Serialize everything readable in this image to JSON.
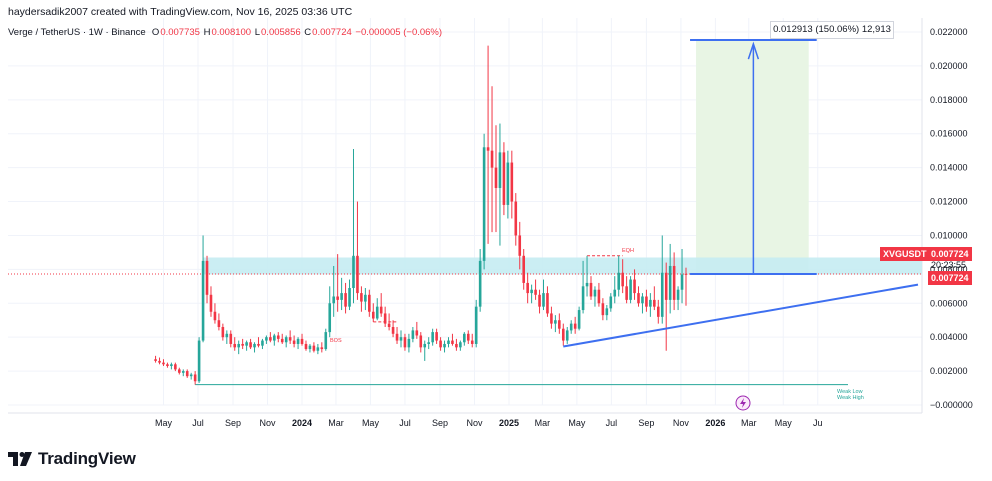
{
  "header": {
    "created": "haydersadik2007 created with TradingView.com, Nov 16, 2025 03:36 UTC",
    "symbol": "Verge / TetherUS · 1W · Binance",
    "o_label": "O",
    "o_val": "0.007735",
    "h_label": "H",
    "h_val": "0.008100",
    "l_label": "L",
    "l_val": "0.005856",
    "c_label": "C",
    "c_val": "0.007724",
    "change": "−0.000005 (−0.06%)"
  },
  "branding": {
    "logo_text": "TradingView"
  },
  "price_tags": {
    "symbol_tag": "XVGUSDT",
    "last_price": "0.007724",
    "countdown": "20:23:55",
    "last_price_2": "0.007724"
  },
  "measure": {
    "label": "0.012913 (150.06%) 12,913"
  },
  "annotations": {
    "eqh": "EQH",
    "bos": "BOS",
    "weak_low": "Weak Low",
    "weak_high": "Weak High"
  },
  "colors": {
    "up": "#26a69a",
    "down": "#f23645",
    "zone": "#c5ecf2",
    "trend": "#3d6ff0",
    "measure_fill": "#e8f5e4"
  },
  "chart_data": {
    "type": "candlestick",
    "title": "Verge / TetherUS · 1W · Binance",
    "y_ticks": [
      "0.022000",
      "0.020000",
      "0.018000",
      "0.016000",
      "0.014000",
      "0.012000",
      "0.010000",
      "0.008000",
      "0.006000",
      "0.004000",
      "0.002000",
      "−0.000000"
    ],
    "ylim": [
      -0.0008,
      0.0232
    ],
    "x_ticks": [
      "May",
      "Jul",
      "Sep",
      "Nov",
      "2024",
      "Mar",
      "May",
      "Jul",
      "Sep",
      "Nov",
      "2025",
      "Mar",
      "May",
      "Jul",
      "Sep",
      "Nov",
      "2026",
      "Mar",
      "May",
      "Ju"
    ],
    "grid": true,
    "legend": "none",
    "candles": [
      {
        "t": "2023-04-17",
        "o": 0.0027,
        "h": 0.0029,
        "l": 0.0025,
        "c": 0.0026
      },
      {
        "t": "2023-04-24",
        "o": 0.0026,
        "h": 0.0028,
        "l": 0.0024,
        "c": 0.0025
      },
      {
        "t": "2023-05-01",
        "o": 0.0025,
        "h": 0.0027,
        "l": 0.0023,
        "c": 0.0024
      },
      {
        "t": "2023-05-08",
        "o": 0.0024,
        "h": 0.0025,
        "l": 0.0022,
        "c": 0.0023
      },
      {
        "t": "2023-05-15",
        "o": 0.0023,
        "h": 0.0025,
        "l": 0.0021,
        "c": 0.0024
      },
      {
        "t": "2023-05-22",
        "o": 0.0024,
        "h": 0.0025,
        "l": 0.002,
        "c": 0.0021
      },
      {
        "t": "2023-05-29",
        "o": 0.0021,
        "h": 0.0022,
        "l": 0.0018,
        "c": 0.0019
      },
      {
        "t": "2023-06-05",
        "o": 0.0019,
        "h": 0.0021,
        "l": 0.0017,
        "c": 0.002
      },
      {
        "t": "2023-06-12",
        "o": 0.002,
        "h": 0.0021,
        "l": 0.0016,
        "c": 0.0017
      },
      {
        "t": "2023-06-19",
        "o": 0.0017,
        "h": 0.0019,
        "l": 0.0015,
        "c": 0.0018
      },
      {
        "t": "2023-06-26",
        "o": 0.0018,
        "h": 0.002,
        "l": 0.0012,
        "c": 0.0014
      },
      {
        "t": "2023-07-03",
        "o": 0.0014,
        "h": 0.004,
        "l": 0.0013,
        "c": 0.0038
      },
      {
        "t": "2023-07-10",
        "o": 0.0038,
        "h": 0.01,
        "l": 0.0037,
        "c": 0.0085
      },
      {
        "t": "2023-07-17",
        "o": 0.0085,
        "h": 0.0088,
        "l": 0.006,
        "c": 0.0065
      },
      {
        "t": "2023-07-24",
        "o": 0.0065,
        "h": 0.007,
        "l": 0.0052,
        "c": 0.0055
      },
      {
        "t": "2023-07-31",
        "o": 0.0055,
        "h": 0.006,
        "l": 0.0048,
        "c": 0.005
      },
      {
        "t": "2023-08-07",
        "o": 0.005,
        "h": 0.0054,
        "l": 0.0044,
        "c": 0.0046
      },
      {
        "t": "2023-08-14",
        "o": 0.0046,
        "h": 0.0048,
        "l": 0.0038,
        "c": 0.004
      },
      {
        "t": "2023-08-21",
        "o": 0.004,
        "h": 0.0044,
        "l": 0.0036,
        "c": 0.0042
      },
      {
        "t": "2023-08-28",
        "o": 0.0042,
        "h": 0.0044,
        "l": 0.0034,
        "c": 0.0036
      },
      {
        "t": "2023-09-04",
        "o": 0.0036,
        "h": 0.004,
        "l": 0.0032,
        "c": 0.0034
      },
      {
        "t": "2023-09-11",
        "o": 0.0034,
        "h": 0.0038,
        "l": 0.003,
        "c": 0.0036
      },
      {
        "t": "2023-09-18",
        "o": 0.0036,
        "h": 0.0039,
        "l": 0.0033,
        "c": 0.0035
      },
      {
        "t": "2023-09-25",
        "o": 0.0035,
        "h": 0.0038,
        "l": 0.0032,
        "c": 0.0037
      },
      {
        "t": "2023-10-02",
        "o": 0.0037,
        "h": 0.0039,
        "l": 0.0033,
        "c": 0.0034
      },
      {
        "t": "2023-10-09",
        "o": 0.0034,
        "h": 0.0037,
        "l": 0.0031,
        "c": 0.0036
      },
      {
        "t": "2023-10-16",
        "o": 0.0036,
        "h": 0.004,
        "l": 0.0034,
        "c": 0.0035
      },
      {
        "t": "2023-10-23",
        "o": 0.0035,
        "h": 0.0039,
        "l": 0.0033,
        "c": 0.0038
      },
      {
        "t": "2023-10-30",
        "o": 0.0038,
        "h": 0.0041,
        "l": 0.0036,
        "c": 0.004
      },
      {
        "t": "2023-11-06",
        "o": 0.004,
        "h": 0.0043,
        "l": 0.0037,
        "c": 0.0038
      },
      {
        "t": "2023-11-13",
        "o": 0.0038,
        "h": 0.0042,
        "l": 0.0035,
        "c": 0.0041
      },
      {
        "t": "2023-11-20",
        "o": 0.0041,
        "h": 0.0043,
        "l": 0.0037,
        "c": 0.0039
      },
      {
        "t": "2023-11-27",
        "o": 0.0039,
        "h": 0.0042,
        "l": 0.0036,
        "c": 0.0037
      },
      {
        "t": "2023-12-04",
        "o": 0.0037,
        "h": 0.0041,
        "l": 0.0034,
        "c": 0.004
      },
      {
        "t": "2023-12-11",
        "o": 0.004,
        "h": 0.0044,
        "l": 0.0036,
        "c": 0.0038
      },
      {
        "t": "2023-12-18",
        "o": 0.0038,
        "h": 0.0041,
        "l": 0.0034,
        "c": 0.0036
      },
      {
        "t": "2023-12-25",
        "o": 0.0036,
        "h": 0.004,
        "l": 0.0033,
        "c": 0.0039
      },
      {
        "t": "2024-01-01",
        "o": 0.0039,
        "h": 0.0042,
        "l": 0.0035,
        "c": 0.0036
      },
      {
        "t": "2024-01-08",
        "o": 0.0036,
        "h": 0.0038,
        "l": 0.0032,
        "c": 0.0033
      },
      {
        "t": "2024-01-15",
        "o": 0.0033,
        "h": 0.0036,
        "l": 0.0031,
        "c": 0.0035
      },
      {
        "t": "2024-01-22",
        "o": 0.0035,
        "h": 0.0037,
        "l": 0.0031,
        "c": 0.0032
      },
      {
        "t": "2024-01-29",
        "o": 0.0032,
        "h": 0.0036,
        "l": 0.003,
        "c": 0.0034
      },
      {
        "t": "2024-02-05",
        "o": 0.0034,
        "h": 0.0037,
        "l": 0.0031,
        "c": 0.0033
      },
      {
        "t": "2024-02-12",
        "o": 0.0033,
        "h": 0.0045,
        "l": 0.0032,
        "c": 0.0043
      },
      {
        "t": "2024-02-19",
        "o": 0.0043,
        "h": 0.007,
        "l": 0.004,
        "c": 0.006
      },
      {
        "t": "2024-02-26",
        "o": 0.006,
        "h": 0.0082,
        "l": 0.0052,
        "c": 0.0064
      },
      {
        "t": "2024-03-04",
        "o": 0.0064,
        "h": 0.0089,
        "l": 0.0055,
        "c": 0.0062
      },
      {
        "t": "2024-03-11",
        "o": 0.0062,
        "h": 0.0075,
        "l": 0.0056,
        "c": 0.0066
      },
      {
        "t": "2024-03-18",
        "o": 0.0066,
        "h": 0.0072,
        "l": 0.0054,
        "c": 0.0058
      },
      {
        "t": "2024-03-25",
        "o": 0.0058,
        "h": 0.0074,
        "l": 0.0056,
        "c": 0.0069
      },
      {
        "t": "2024-04-01",
        "o": 0.0069,
        "h": 0.0151,
        "l": 0.006,
        "c": 0.0088
      },
      {
        "t": "2024-04-08",
        "o": 0.0088,
        "h": 0.012,
        "l": 0.0062,
        "c": 0.0066
      },
      {
        "t": "2024-04-15",
        "o": 0.0066,
        "h": 0.007,
        "l": 0.0055,
        "c": 0.0061
      },
      {
        "t": "2024-04-22",
        "o": 0.0061,
        "h": 0.0069,
        "l": 0.0056,
        "c": 0.0065
      },
      {
        "t": "2024-04-29",
        "o": 0.0065,
        "h": 0.0068,
        "l": 0.0052,
        "c": 0.0055
      },
      {
        "t": "2024-05-06",
        "o": 0.0055,
        "h": 0.006,
        "l": 0.0049,
        "c": 0.0051
      },
      {
        "t": "2024-05-13",
        "o": 0.0051,
        "h": 0.0063,
        "l": 0.005,
        "c": 0.0058
      },
      {
        "t": "2024-05-20",
        "o": 0.0058,
        "h": 0.0066,
        "l": 0.0052,
        "c": 0.0054
      },
      {
        "t": "2024-05-27",
        "o": 0.0054,
        "h": 0.0058,
        "l": 0.0046,
        "c": 0.0048
      },
      {
        "t": "2024-06-03",
        "o": 0.0048,
        "h": 0.0054,
        "l": 0.0044,
        "c": 0.0046
      },
      {
        "t": "2024-06-10",
        "o": 0.0046,
        "h": 0.005,
        "l": 0.004,
        "c": 0.0042
      },
      {
        "t": "2024-06-17",
        "o": 0.0042,
        "h": 0.0046,
        "l": 0.0036,
        "c": 0.0038
      },
      {
        "t": "2024-06-24",
        "o": 0.0038,
        "h": 0.0044,
        "l": 0.0034,
        "c": 0.004
      },
      {
        "t": "2024-07-01",
        "o": 0.004,
        "h": 0.0042,
        "l": 0.0032,
        "c": 0.0034
      },
      {
        "t": "2024-07-08",
        "o": 0.0034,
        "h": 0.0042,
        "l": 0.0031,
        "c": 0.0039
      },
      {
        "t": "2024-07-15",
        "o": 0.0039,
        "h": 0.0046,
        "l": 0.0037,
        "c": 0.0044
      },
      {
        "t": "2024-07-22",
        "o": 0.0044,
        "h": 0.0049,
        "l": 0.0039,
        "c": 0.0041
      },
      {
        "t": "2024-07-29",
        "o": 0.0041,
        "h": 0.0043,
        "l": 0.0031,
        "c": 0.0034
      },
      {
        "t": "2024-08-05",
        "o": 0.0034,
        "h": 0.0038,
        "l": 0.0026,
        "c": 0.0036
      },
      {
        "t": "2024-08-12",
        "o": 0.0036,
        "h": 0.004,
        "l": 0.0033,
        "c": 0.0037
      },
      {
        "t": "2024-08-19",
        "o": 0.0037,
        "h": 0.0045,
        "l": 0.0035,
        "c": 0.0043
      },
      {
        "t": "2024-08-26",
        "o": 0.0043,
        "h": 0.0045,
        "l": 0.0036,
        "c": 0.0038
      },
      {
        "t": "2024-09-02",
        "o": 0.0038,
        "h": 0.004,
        "l": 0.0032,
        "c": 0.0034
      },
      {
        "t": "2024-09-09",
        "o": 0.0034,
        "h": 0.0038,
        "l": 0.0031,
        "c": 0.0036
      },
      {
        "t": "2024-09-16",
        "o": 0.0036,
        "h": 0.004,
        "l": 0.0034,
        "c": 0.0038
      },
      {
        "t": "2024-09-23",
        "o": 0.0038,
        "h": 0.0042,
        "l": 0.0035,
        "c": 0.0036
      },
      {
        "t": "2024-09-30",
        "o": 0.0036,
        "h": 0.0039,
        "l": 0.0032,
        "c": 0.0034
      },
      {
        "t": "2024-10-07",
        "o": 0.0034,
        "h": 0.0038,
        "l": 0.0032,
        "c": 0.0037
      },
      {
        "t": "2024-10-14",
        "o": 0.0037,
        "h": 0.0043,
        "l": 0.0035,
        "c": 0.0042
      },
      {
        "t": "2024-10-21",
        "o": 0.0042,
        "h": 0.0044,
        "l": 0.0036,
        "c": 0.0038
      },
      {
        "t": "2024-10-28",
        "o": 0.0038,
        "h": 0.0042,
        "l": 0.0034,
        "c": 0.0036
      },
      {
        "t": "2024-11-04",
        "o": 0.0036,
        "h": 0.0062,
        "l": 0.0034,
        "c": 0.0058
      },
      {
        "t": "2024-11-11",
        "o": 0.0058,
        "h": 0.0092,
        "l": 0.0055,
        "c": 0.0085
      },
      {
        "t": "2024-11-18",
        "o": 0.0085,
        "h": 0.016,
        "l": 0.008,
        "c": 0.0152
      },
      {
        "t": "2024-11-25",
        "o": 0.0152,
        "h": 0.0212,
        "l": 0.0095,
        "c": 0.015
      },
      {
        "t": "2024-12-02",
        "o": 0.015,
        "h": 0.0188,
        "l": 0.0102,
        "c": 0.014
      },
      {
        "t": "2024-12-09",
        "o": 0.014,
        "h": 0.0165,
        "l": 0.0102,
        "c": 0.0128
      },
      {
        "t": "2024-12-16",
        "o": 0.0128,
        "h": 0.0166,
        "l": 0.0094,
        "c": 0.0149
      },
      {
        "t": "2024-12-23",
        "o": 0.0149,
        "h": 0.0155,
        "l": 0.0112,
        "c": 0.0118
      },
      {
        "t": "2024-12-30",
        "o": 0.0118,
        "h": 0.015,
        "l": 0.011,
        "c": 0.0143
      },
      {
        "t": "2025-01-06",
        "o": 0.0143,
        "h": 0.015,
        "l": 0.011,
        "c": 0.012
      },
      {
        "t": "2025-01-13",
        "o": 0.012,
        "h": 0.0125,
        "l": 0.0094,
        "c": 0.01
      },
      {
        "t": "2025-01-20",
        "o": 0.01,
        "h": 0.0108,
        "l": 0.008,
        "c": 0.0088
      },
      {
        "t": "2025-01-27",
        "o": 0.0088,
        "h": 0.0092,
        "l": 0.0068,
        "c": 0.0072
      },
      {
        "t": "2025-02-03",
        "o": 0.0072,
        "h": 0.0078,
        "l": 0.006,
        "c": 0.0066
      },
      {
        "t": "2025-02-10",
        "o": 0.0066,
        "h": 0.0071,
        "l": 0.006,
        "c": 0.0068
      },
      {
        "t": "2025-02-17",
        "o": 0.0068,
        "h": 0.0074,
        "l": 0.0062,
        "c": 0.0065
      },
      {
        "t": "2025-02-24",
        "o": 0.0065,
        "h": 0.0068,
        "l": 0.0054,
        "c": 0.0058
      },
      {
        "t": "2025-03-03",
        "o": 0.0058,
        "h": 0.0074,
        "l": 0.0056,
        "c": 0.0066
      },
      {
        "t": "2025-03-10",
        "o": 0.0066,
        "h": 0.007,
        "l": 0.0052,
        "c": 0.0054
      },
      {
        "t": "2025-03-17",
        "o": 0.0054,
        "h": 0.0058,
        "l": 0.0045,
        "c": 0.0048
      },
      {
        "t": "2025-03-24",
        "o": 0.0048,
        "h": 0.0053,
        "l": 0.0043,
        "c": 0.005
      },
      {
        "t": "2025-03-31",
        "o": 0.005,
        "h": 0.0054,
        "l": 0.0042,
        "c": 0.0045
      },
      {
        "t": "2025-04-07",
        "o": 0.0045,
        "h": 0.0048,
        "l": 0.0035,
        "c": 0.0038
      },
      {
        "t": "2025-04-14",
        "o": 0.0038,
        "h": 0.0046,
        "l": 0.0036,
        "c": 0.0044
      },
      {
        "t": "2025-04-21",
        "o": 0.0044,
        "h": 0.005,
        "l": 0.0042,
        "c": 0.0048
      },
      {
        "t": "2025-04-28",
        "o": 0.0048,
        "h": 0.0052,
        "l": 0.0042,
        "c": 0.0045
      },
      {
        "t": "2025-05-05",
        "o": 0.0045,
        "h": 0.0058,
        "l": 0.0044,
        "c": 0.0056
      },
      {
        "t": "2025-05-12",
        "o": 0.0056,
        "h": 0.0085,
        "l": 0.0054,
        "c": 0.007
      },
      {
        "t": "2025-05-19",
        "o": 0.007,
        "h": 0.0088,
        "l": 0.0064,
        "c": 0.0072
      },
      {
        "t": "2025-05-26",
        "o": 0.0072,
        "h": 0.0076,
        "l": 0.0062,
        "c": 0.0064
      },
      {
        "t": "2025-06-02",
        "o": 0.0064,
        "h": 0.007,
        "l": 0.0058,
        "c": 0.0068
      },
      {
        "t": "2025-06-09",
        "o": 0.0068,
        "h": 0.0072,
        "l": 0.0058,
        "c": 0.006
      },
      {
        "t": "2025-06-16",
        "o": 0.006,
        "h": 0.0063,
        "l": 0.005,
        "c": 0.0053
      },
      {
        "t": "2025-06-23",
        "o": 0.0053,
        "h": 0.0059,
        "l": 0.005,
        "c": 0.0057
      },
      {
        "t": "2025-06-30",
        "o": 0.0057,
        "h": 0.0066,
        "l": 0.0055,
        "c": 0.0064
      },
      {
        "t": "2025-07-07",
        "o": 0.0064,
        "h": 0.0076,
        "l": 0.006,
        "c": 0.0068
      },
      {
        "t": "2025-07-14",
        "o": 0.0068,
        "h": 0.0088,
        "l": 0.0064,
        "c": 0.0078
      },
      {
        "t": "2025-07-21",
        "o": 0.0078,
        "h": 0.0086,
        "l": 0.0066,
        "c": 0.007
      },
      {
        "t": "2025-07-28",
        "o": 0.007,
        "h": 0.0076,
        "l": 0.006,
        "c": 0.0062
      },
      {
        "t": "2025-08-04",
        "o": 0.0062,
        "h": 0.0076,
        "l": 0.006,
        "c": 0.0074
      },
      {
        "t": "2025-08-11",
        "o": 0.0074,
        "h": 0.008,
        "l": 0.0062,
        "c": 0.0066
      },
      {
        "t": "2025-08-18",
        "o": 0.0066,
        "h": 0.007,
        "l": 0.0058,
        "c": 0.006
      },
      {
        "t": "2025-08-25",
        "o": 0.006,
        "h": 0.0066,
        "l": 0.0054,
        "c": 0.0064
      },
      {
        "t": "2025-09-01",
        "o": 0.0064,
        "h": 0.0068,
        "l": 0.0055,
        "c": 0.0058
      },
      {
        "t": "2025-09-08",
        "o": 0.0058,
        "h": 0.0066,
        "l": 0.0052,
        "c": 0.0062
      },
      {
        "t": "2025-09-15",
        "o": 0.0062,
        "h": 0.007,
        "l": 0.0056,
        "c": 0.0058
      },
      {
        "t": "2025-09-22",
        "o": 0.0058,
        "h": 0.0062,
        "l": 0.0048,
        "c": 0.0052
      },
      {
        "t": "2025-09-29",
        "o": 0.0052,
        "h": 0.01,
        "l": 0.0048,
        "c": 0.0078
      },
      {
        "t": "2025-10-06",
        "o": 0.0078,
        "h": 0.0084,
        "l": 0.0032,
        "c": 0.0062
      },
      {
        "t": "2025-10-13",
        "o": 0.0062,
        "h": 0.0095,
        "l": 0.0054,
        "c": 0.0082
      },
      {
        "t": "2025-10-20",
        "o": 0.0082,
        "h": 0.009,
        "l": 0.0056,
        "c": 0.0062
      },
      {
        "t": "2025-10-27",
        "o": 0.0062,
        "h": 0.007,
        "l": 0.0056,
        "c": 0.0068
      },
      {
        "t": "2025-11-03",
        "o": 0.0068,
        "h": 0.0092,
        "l": 0.006,
        "c": 0.0077
      },
      {
        "t": "2025-11-10",
        "o": 0.007735,
        "h": 0.0081,
        "l": 0.005856,
        "c": 0.007724
      }
    ]
  }
}
